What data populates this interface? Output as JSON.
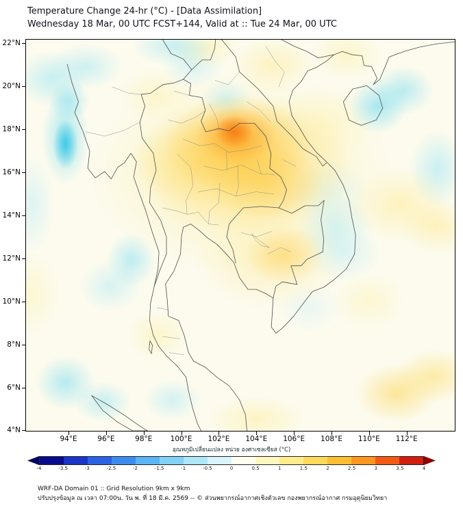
{
  "header": {
    "title": "Temperature Change 24-hr (°C) - [Data Assimilation]",
    "subtitle": "Wednesday 18 Mar, 00 UTC FCST+144, Valid at :: Tue 24 Mar, 00 UTC"
  },
  "map": {
    "lat_range": [
      3.95,
      22.2
    ],
    "lon_range": [
      91.7,
      114.6
    ],
    "y_ticks": [
      {
        "label": "22°N",
        "value": 22
      },
      {
        "label": "20°N",
        "value": 20
      },
      {
        "label": "18°N",
        "value": 18
      },
      {
        "label": "16°N",
        "value": 16
      },
      {
        "label": "14°N",
        "value": 14
      },
      {
        "label": "12°N",
        "value": 12
      },
      {
        "label": "10°N",
        "value": 10
      },
      {
        "label": "8°N",
        "value": 8
      },
      {
        "label": "6°N",
        "value": 6
      },
      {
        "label": "4°N",
        "value": 4
      }
    ],
    "x_ticks": [
      {
        "label": "94°E",
        "value": 94
      },
      {
        "label": "96°E",
        "value": 96
      },
      {
        "label": "98°E",
        "value": 98
      },
      {
        "label": "100°E",
        "value": 100
      },
      {
        "label": "102°E",
        "value": 102
      },
      {
        "label": "104°E",
        "value": 104
      },
      {
        "label": "106°E",
        "value": 106
      },
      {
        "label": "108°E",
        "value": 108
      },
      {
        "label": "110°E",
        "value": 110
      },
      {
        "label": "112°E",
        "value": 112
      }
    ]
  },
  "colorbar": {
    "label": "อุณหภูมิเปลี่ยนแปลง หน่วย องศาเซลเซียส (°C)",
    "units": "°C",
    "ticks": [
      "-4",
      "-3.5",
      "-3",
      "-2.5",
      "-2",
      "-1.5",
      "-1",
      "-0.5",
      "0",
      "0.5",
      "1",
      "1.5",
      "2",
      "2.5",
      "3",
      "3.5",
      "4"
    ],
    "colors": [
      "#0a0a8c",
      "#1a35c8",
      "#2a62e6",
      "#3c8cf0",
      "#5ab4f5",
      "#82d2f8",
      "#aee6fa",
      "#d8f4fc",
      "#fffef0",
      "#fff7c0",
      "#ffec8c",
      "#ffd95a",
      "#ffbe32",
      "#ff961e",
      "#f55a14",
      "#d21e0f"
    ],
    "arrow_left": "#050564",
    "arrow_right": "#8c0000"
  },
  "footer": {
    "line1": "WRF-DA Domain 01 :: Grid Resolution 9km x 9km",
    "line2": "ปรับปรุงข้อมูล ณ เวลา 07:00น. วัน พ. ที่ 18 มี.ค. 2569 -- © ส่วนพยากรณ์อากาศเชิงตัวเลข กองพยากรณ์อากาศ กรมอุตุนิยมวิทยา"
  }
}
